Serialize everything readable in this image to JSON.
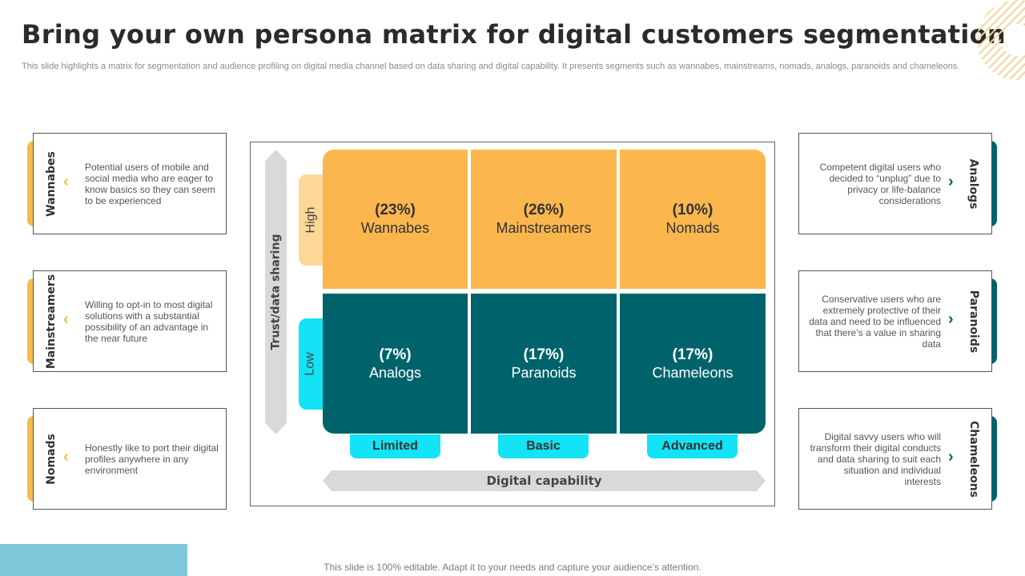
{
  "title": "Bring your own persona matrix for digital customers segmentation",
  "subtitle": "This slide highlights a matrix for segmentation and audience profiling on digital media channel based on data sharing and digital capability. It presents segments such as wannabes, mainstreams, nomads, analogs, paranoids and chameleons.",
  "colors": {
    "accent_yellow": "#fbb74d",
    "accent_teal": "#00636b",
    "accent_cyan": "#13e3f5",
    "light_yellow": "#fcd897",
    "axis_gray": "#d9d9d9"
  },
  "left_cards": [
    {
      "label": "Wannabes",
      "text": "Potential users of mobile and social media who are eager to know basics so they can seem to be experienced",
      "icon": "chevron-left-icon"
    },
    {
      "label": "Mainstreamers",
      "text": "Willing to opt-in to most digital solutions with a substantial possibility of an advantage in the near future",
      "icon": "chevron-left-icon"
    },
    {
      "label": "Nomads",
      "text": "Honestly like to port their digital profiles anywhere in any environment",
      "icon": "chevron-left-icon"
    }
  ],
  "right_cards": [
    {
      "label": "Analogs",
      "text": "Competent digital users who decided to “unplug” due to privacy or life-balance considerations",
      "icon": "chevron-right-icon"
    },
    {
      "label": "Paranoids",
      "text": "Conservative users who are extremely protective of their data and need to be influenced that there’s a value in sharing data",
      "icon": "chevron-right-icon"
    },
    {
      "label": "Chameleons",
      "text": "Digital savvy users who will transform their digital conducts and data sharing to suit each situation and individual interests",
      "icon": "chevron-right-icon"
    }
  ],
  "matrix": {
    "y_axis": "Trust/data sharing",
    "x_axis": "Digital capability",
    "y_levels": [
      "High",
      "Low"
    ],
    "x_levels": [
      "Limited",
      "Basic",
      "Advanced"
    ],
    "cells": [
      {
        "pct": "(23%)",
        "name": "Wannabes"
      },
      {
        "pct": "(26%)",
        "name": "Mainstreamers"
      },
      {
        "pct": "(10%)",
        "name": "Nomads"
      },
      {
        "pct": "(7%)",
        "name": "Analogs"
      },
      {
        "pct": "(17%)",
        "name": "Paranoids"
      },
      {
        "pct": "(17%)",
        "name": "Chameleons"
      }
    ]
  },
  "footer": "This slide is 100% editable. Adapt it to your needs and capture your audience’s attention."
}
